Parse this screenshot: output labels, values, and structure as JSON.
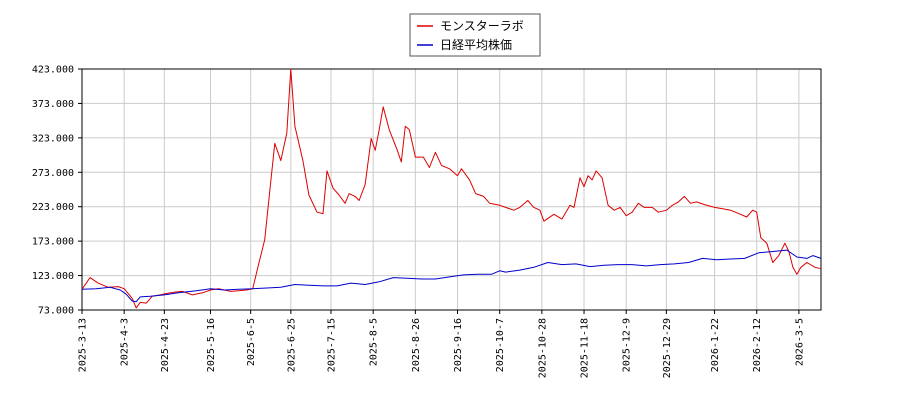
{
  "chart_data": {
    "type": "line",
    "title": "",
    "xlabel": "",
    "ylabel": "",
    "ylim": [
      73.0,
      423.0
    ],
    "y_ticks": [
      "73.000",
      "123.000",
      "173.000",
      "223.000",
      "273.000",
      "323.000",
      "373.000",
      "423.000"
    ],
    "x_range": [
      "2025-03-13",
      "2026-03-16"
    ],
    "x_ticks": [
      "2025-3-13",
      "2025-4-3",
      "2025-4-23",
      "2025-5-16",
      "2025-6-5",
      "2025-6-25",
      "2025-7-15",
      "2025-8-5",
      "2025-8-26",
      "2025-9-16",
      "2025-10-7",
      "2025-10-28",
      "2025-11-18",
      "2025-12-9",
      "2025-12-29",
      "2026-1-22",
      "2026-2-12",
      "2026-3-5"
    ],
    "grid": true,
    "legend_position": "top-center",
    "series": [
      {
        "name": "モンスターラボ",
        "color": "#dd0000",
        "points": [
          [
            "2025-03-13",
            103
          ],
          [
            "2025-03-17",
            120
          ],
          [
            "2025-03-21",
            112
          ],
          [
            "2025-03-26",
            106
          ],
          [
            "2025-03-31",
            107
          ],
          [
            "2025-04-03",
            104
          ],
          [
            "2025-04-07",
            90
          ],
          [
            "2025-04-09",
            76
          ],
          [
            "2025-04-11",
            84
          ],
          [
            "2025-04-14",
            83
          ],
          [
            "2025-04-17",
            93
          ],
          [
            "2025-04-21",
            95
          ],
          [
            "2025-04-24",
            97
          ],
          [
            "2025-04-28",
            99
          ],
          [
            "2025-05-02",
            100
          ],
          [
            "2025-05-07",
            95
          ],
          [
            "2025-05-12",
            98
          ],
          [
            "2025-05-16",
            102
          ],
          [
            "2025-05-20",
            104
          ],
          [
            "2025-05-26",
            100
          ],
          [
            "2025-05-30",
            101
          ],
          [
            "2025-06-03",
            102
          ],
          [
            "2025-06-06",
            104
          ],
          [
            "2025-06-09",
            140
          ],
          [
            "2025-06-12",
            175
          ],
          [
            "2025-06-15",
            260
          ],
          [
            "2025-06-17",
            315
          ],
          [
            "2025-06-20",
            290
          ],
          [
            "2025-06-23",
            330
          ],
          [
            "2025-06-25",
            423
          ],
          [
            "2025-06-27",
            340
          ],
          [
            "2025-07-01",
            290
          ],
          [
            "2025-07-04",
            240
          ],
          [
            "2025-07-08",
            215
          ],
          [
            "2025-07-11",
            213
          ],
          [
            "2025-07-13",
            275
          ],
          [
            "2025-07-16",
            250
          ],
          [
            "2025-07-19",
            240
          ],
          [
            "2025-07-22",
            228
          ],
          [
            "2025-07-24",
            242
          ],
          [
            "2025-07-27",
            238
          ],
          [
            "2025-07-29",
            232
          ],
          [
            "2025-08-01",
            255
          ],
          [
            "2025-08-04",
            322
          ],
          [
            "2025-08-06",
            305
          ],
          [
            "2025-08-08",
            335
          ],
          [
            "2025-08-10",
            368
          ],
          [
            "2025-08-13",
            335
          ],
          [
            "2025-08-17",
            305
          ],
          [
            "2025-08-19",
            288
          ],
          [
            "2025-08-21",
            340
          ],
          [
            "2025-08-23",
            335
          ],
          [
            "2025-08-26",
            295
          ],
          [
            "2025-08-30",
            295
          ],
          [
            "2025-09-02",
            280
          ],
          [
            "2025-09-05",
            302
          ],
          [
            "2025-09-08",
            283
          ],
          [
            "2025-09-12",
            278
          ],
          [
            "2025-09-16",
            268
          ],
          [
            "2025-09-18",
            278
          ],
          [
            "2025-09-22",
            262
          ],
          [
            "2025-09-25",
            242
          ],
          [
            "2025-09-29",
            238
          ],
          [
            "2025-10-02",
            228
          ],
          [
            "2025-10-07",
            225
          ],
          [
            "2025-10-10",
            222
          ],
          [
            "2025-10-14",
            218
          ],
          [
            "2025-10-17",
            222
          ],
          [
            "2025-10-21",
            232
          ],
          [
            "2025-10-24",
            222
          ],
          [
            "2025-10-27",
            218
          ],
          [
            "2025-10-29",
            202
          ],
          [
            "2025-11-03",
            212
          ],
          [
            "2025-11-07",
            205
          ],
          [
            "2025-11-11",
            225
          ],
          [
            "2025-11-13",
            222
          ],
          [
            "2025-11-16",
            265
          ],
          [
            "2025-11-18",
            252
          ],
          [
            "2025-11-20",
            268
          ],
          [
            "2025-11-22",
            262
          ],
          [
            "2025-11-24",
            275
          ],
          [
            "2025-11-27",
            265
          ],
          [
            "2025-11-30",
            225
          ],
          [
            "2025-12-03",
            218
          ],
          [
            "2025-12-06",
            222
          ],
          [
            "2025-12-09",
            210
          ],
          [
            "2025-12-12",
            215
          ],
          [
            "2025-12-15",
            228
          ],
          [
            "2025-12-18",
            222
          ],
          [
            "2025-12-22",
            222
          ],
          [
            "2025-12-25",
            215
          ],
          [
            "2025-12-29",
            218
          ],
          [
            "2026-01-01",
            225
          ],
          [
            "2026-01-04",
            230
          ],
          [
            "2026-01-07",
            238
          ],
          [
            "2026-01-10",
            228
          ],
          [
            "2026-01-13",
            230
          ],
          [
            "2026-01-17",
            226
          ],
          [
            "2026-01-22",
            222
          ],
          [
            "2026-01-26",
            220
          ],
          [
            "2026-01-30",
            218
          ],
          [
            "2026-02-03",
            213
          ],
          [
            "2026-02-07",
            208
          ],
          [
            "2026-02-10",
            218
          ],
          [
            "2026-02-12",
            215
          ],
          [
            "2026-02-14",
            178
          ],
          [
            "2026-02-17",
            170
          ],
          [
            "2026-02-20",
            142
          ],
          [
            "2026-02-23",
            152
          ],
          [
            "2026-02-26",
            170
          ],
          [
            "2026-02-28",
            158
          ],
          [
            "2026-03-02",
            135
          ],
          [
            "2026-03-04",
            125
          ],
          [
            "2026-03-06",
            135
          ],
          [
            "2026-03-09",
            142
          ],
          [
            "2026-03-13",
            135
          ],
          [
            "2026-03-16",
            133
          ]
        ]
      },
      {
        "name": "日経平均株価",
        "color": "#0000cc",
        "points": [
          [
            "2025-03-13",
            103
          ],
          [
            "2025-03-20",
            104
          ],
          [
            "2025-03-27",
            106
          ],
          [
            "2025-04-01",
            102
          ],
          [
            "2025-04-04",
            96
          ],
          [
            "2025-04-07",
            86
          ],
          [
            "2025-04-09",
            85
          ],
          [
            "2025-04-11",
            92
          ],
          [
            "2025-04-16",
            93
          ],
          [
            "2025-04-23",
            95
          ],
          [
            "2025-04-30",
            98
          ],
          [
            "2025-05-09",
            101
          ],
          [
            "2025-05-16",
            104
          ],
          [
            "2025-05-23",
            102
          ],
          [
            "2025-05-30",
            103
          ],
          [
            "2025-06-06",
            104
          ],
          [
            "2025-06-13",
            105
          ],
          [
            "2025-06-20",
            106
          ],
          [
            "2025-06-27",
            110
          ],
          [
            "2025-07-04",
            109
          ],
          [
            "2025-07-11",
            108
          ],
          [
            "2025-07-18",
            108
          ],
          [
            "2025-07-25",
            112
          ],
          [
            "2025-08-01",
            110
          ],
          [
            "2025-08-08",
            114
          ],
          [
            "2025-08-15",
            120
          ],
          [
            "2025-08-22",
            119
          ],
          [
            "2025-08-29",
            118
          ],
          [
            "2025-09-05",
            118
          ],
          [
            "2025-09-12",
            121
          ],
          [
            "2025-09-19",
            124
          ],
          [
            "2025-09-26",
            125
          ],
          [
            "2025-10-03",
            125
          ],
          [
            "2025-10-07",
            130
          ],
          [
            "2025-10-10",
            128
          ],
          [
            "2025-10-17",
            131
          ],
          [
            "2025-10-24",
            135
          ],
          [
            "2025-10-31",
            142
          ],
          [
            "2025-11-07",
            139
          ],
          [
            "2025-11-14",
            140
          ],
          [
            "2025-11-21",
            136
          ],
          [
            "2025-11-28",
            138
          ],
          [
            "2025-12-05",
            139
          ],
          [
            "2025-12-12",
            139
          ],
          [
            "2025-12-19",
            137
          ],
          [
            "2025-12-26",
            139
          ],
          [
            "2026-01-02",
            140
          ],
          [
            "2026-01-09",
            142
          ],
          [
            "2026-01-16",
            148
          ],
          [
            "2026-01-23",
            146
          ],
          [
            "2026-01-30",
            147
          ],
          [
            "2026-02-06",
            148
          ],
          [
            "2026-02-13",
            156
          ],
          [
            "2026-02-20",
            158
          ],
          [
            "2026-02-27",
            160
          ],
          [
            "2026-03-04",
            150
          ],
          [
            "2026-03-09",
            148
          ],
          [
            "2026-03-12",
            152
          ],
          [
            "2026-03-16",
            148
          ]
        ]
      }
    ]
  }
}
